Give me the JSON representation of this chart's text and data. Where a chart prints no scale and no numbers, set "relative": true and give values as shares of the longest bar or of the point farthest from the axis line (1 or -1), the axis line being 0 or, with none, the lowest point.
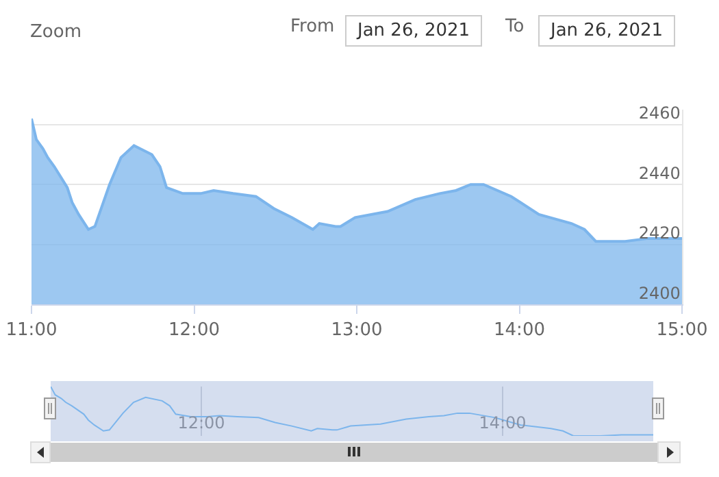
{
  "chart_data": [
    {
      "type": "area",
      "annotations": [
        "Zoom",
        "From",
        "Jan 26, 2021",
        "To",
        "Jan 26, 2021"
      ],
      "x": [
        11.0,
        11.03,
        11.07,
        11.1,
        11.14,
        11.22,
        11.25,
        11.29,
        11.35,
        11.39,
        11.48,
        11.55,
        11.63,
        11.74,
        11.79,
        11.83,
        11.93,
        12.04,
        12.12,
        12.24,
        12.38,
        12.49,
        12.6,
        12.73,
        12.77,
        12.87,
        12.9,
        12.99,
        13.19,
        13.36,
        13.51,
        13.61,
        13.7,
        13.78,
        13.95,
        14.12,
        14.32,
        14.4,
        14.47,
        14.6,
        14.65,
        14.79,
        15.0
      ],
      "series": [
        {
          "color": "#7cb5ec",
          "values": [
            2462,
            2455,
            2452,
            2449,
            2446,
            2439,
            2434,
            2430,
            2425,
            2426,
            2440,
            2449,
            2453,
            2450,
            2446,
            2439,
            2437,
            2437,
            2438,
            2437,
            2436,
            2432,
            2429,
            2425,
            2427,
            2426,
            2426,
            2429,
            2431,
            2435,
            2437,
            2438,
            2440,
            2440,
            2436,
            2430,
            2427,
            2425,
            2421,
            2421,
            2421,
            2422,
            2422
          ]
        }
      ],
      "xlim": [
        11,
        15
      ],
      "xticks": [
        {
          "value": 11,
          "label": "11:00"
        },
        {
          "value": 12,
          "label": "12:00"
        },
        {
          "value": 13,
          "label": "13:00"
        },
        {
          "value": 14,
          "label": "14:00"
        },
        {
          "value": 15,
          "label": "15:00"
        }
      ],
      "ylim": [
        2400,
        2465
      ],
      "yticks": [
        2400,
        2420,
        2440,
        2460
      ],
      "grid": "y"
    },
    {
      "type": "line",
      "relative": true,
      "tick_labels": "x",
      "grid": "x",
      "x": [
        11.0,
        11.03,
        11.07,
        11.1,
        11.14,
        11.22,
        11.25,
        11.29,
        11.35,
        11.39,
        11.48,
        11.55,
        11.63,
        11.74,
        11.79,
        11.83,
        11.93,
        12.04,
        12.12,
        12.24,
        12.38,
        12.49,
        12.6,
        12.73,
        12.77,
        12.87,
        12.9,
        12.99,
        13.19,
        13.36,
        13.51,
        13.61,
        13.7,
        13.78,
        13.95,
        14.12,
        14.32,
        14.4,
        14.47,
        14.6,
        14.65,
        14.79,
        15.0
      ],
      "series": [
        {
          "color": "#7cb5ec",
          "values": [
            1,
            0.83,
            0.76,
            0.68,
            0.61,
            0.44,
            0.32,
            0.22,
            0.1,
            0.12,
            0.46,
            0.68,
            0.78,
            0.71,
            0.61,
            0.44,
            0.39,
            0.39,
            0.41,
            0.39,
            0.37,
            0.27,
            0.2,
            0.1,
            0.15,
            0.12,
            0.12,
            0.2,
            0.24,
            0.34,
            0.39,
            0.41,
            0.46,
            0.46,
            0.37,
            0.22,
            0.15,
            0.1,
            0,
            0,
            0,
            0.02,
            0.02
          ]
        }
      ],
      "xlim": [
        11,
        15
      ],
      "xticks": [
        {
          "value": 12,
          "label": "12:00"
        },
        {
          "value": 14,
          "label": "14:00"
        }
      ]
    }
  ]
}
